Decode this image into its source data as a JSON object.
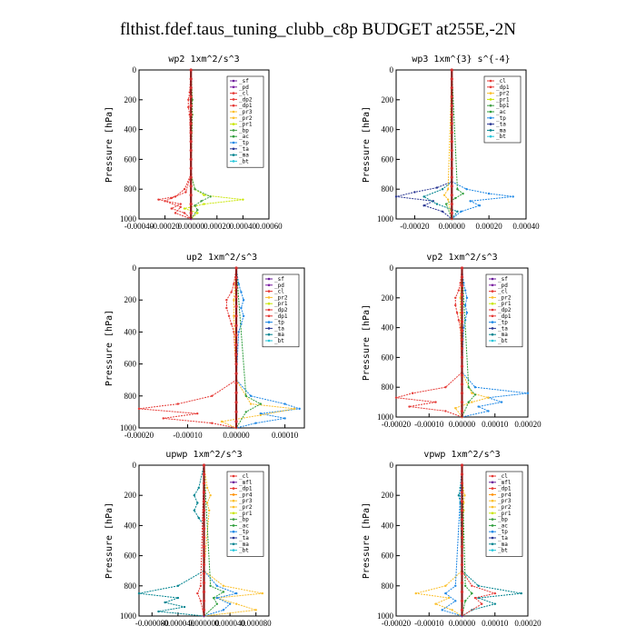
{
  "page": {
    "title": "flthist.fdef.taus_tuning_clubb_c8p  BUDGET at255E,-2N"
  },
  "colors": {
    "sf": "#6a1b9a",
    "pd": "#7b1fa2",
    "cl": "#e53935",
    "dp2": "#e53935",
    "dp1": "#e53935",
    "pr3": "#fbc02d",
    "pr2": "#fbc02d",
    "pr1": "#c8e600",
    "bp": "#43a047",
    "ac": "#2e9e3c",
    "tp": "#1e88e5",
    "ta": "#283593",
    "ma": "#00838f",
    "bt": "#26c6da",
    "mfl": "#6a1b9a",
    "pr4": "#ff8f00",
    "zero_line": "#8b1a1a"
  },
  "chart_data": [
    {
      "type": "line",
      "title": "wp2   1xm^2/s^3",
      "ylabel": "Pressure [hPa]",
      "xlim": [
        -0.0004,
        0.0006
      ],
      "ylim": [
        1000,
        0
      ],
      "xticks": [
        "-0.00040",
        "-0.00020",
        "0.00000",
        "0.00020",
        "0.00040",
        "0.00060"
      ],
      "yticks": [
        "0",
        "200",
        "400",
        "600",
        "800",
        "1000"
      ],
      "legend": [
        "_sf",
        "_pd",
        "_cl",
        "_dp2",
        "_dp1",
        "_pr3",
        "_pr2",
        "_pr1",
        "_bp",
        "_ac",
        "_tp",
        "_ta",
        "_ma",
        "_bt"
      ],
      "legend_keys": [
        "sf",
        "pd",
        "cl",
        "dp2",
        "dp1",
        "pr3",
        "pr2",
        "pr1",
        "bp",
        "ac",
        "tp",
        "ta",
        "ma",
        "bt"
      ],
      "legend_position": "top-right",
      "series": [
        {
          "key": "pr1",
          "p": [
            0,
            200,
            300,
            700,
            800,
            840,
            870,
            900,
            930,
            960,
            1000
          ],
          "x": [
            0,
            1e-05,
            1e-05,
            0,
            3e-05,
            0.0001,
            0.0004,
            0.0001,
            -5e-05,
            5e-05,
            0
          ]
        },
        {
          "key": "bp",
          "p": [
            0,
            200,
            300,
            700,
            800,
            850,
            880,
            910,
            940,
            1000
          ],
          "x": [
            0,
            1e-05,
            1e-05,
            0,
            3e-05,
            0.00015,
            8e-05,
            3e-05,
            5e-05,
            0
          ]
        },
        {
          "key": "dp1",
          "p": [
            0,
            150,
            200,
            250,
            300,
            700,
            800,
            850,
            870,
            900,
            930,
            960,
            1000
          ],
          "x": [
            0,
            -1e-05,
            -2e-05,
            -2e-05,
            -1e-05,
            0,
            -5e-05,
            -0.00012,
            -0.00025,
            -8e-05,
            -0.00015,
            -5e-05,
            0
          ]
        },
        {
          "key": "cl",
          "p": [
            0,
            700,
            820,
            860,
            880,
            920,
            960,
            1000
          ],
          "x": [
            0,
            0,
            -4e-05,
            -0.00015,
            -0.0002,
            -8e-05,
            -0.00012,
            0
          ]
        },
        {
          "key": "pd",
          "p": [
            0,
            1000
          ],
          "x": [
            0,
            0
          ]
        }
      ]
    },
    {
      "type": "line",
      "title": "wp3   1xm^{3} s^{-4}",
      "ylabel": "Pressure [hPa]",
      "xlim": [
        -0.0003,
        0.0004
      ],
      "ylim": [
        1000,
        0
      ],
      "xticks": [
        "-0.00020",
        "0.00000",
        "0.00020",
        "0.00040"
      ],
      "yticks": [
        "0",
        "200",
        "400",
        "600",
        "800",
        "1000"
      ],
      "legend": [
        "_cl",
        "_dp1",
        "_pr2",
        "_pr1",
        "_bp1",
        "_ac",
        "_tp",
        "_ta",
        "_ma",
        "_bt"
      ],
      "legend_keys": [
        "cl",
        "dp1",
        "pr2",
        "pr1",
        "bp",
        "ac",
        "tp",
        "ta",
        "ma",
        "bt"
      ],
      "legend_position": "top-right",
      "series": [
        {
          "key": "ta",
          "p": [
            0,
            750,
            790,
            820,
            850,
            880,
            910,
            950,
            1000
          ],
          "x": [
            0,
            0,
            -8e-05,
            -0.0002,
            -0.0003,
            -0.0001,
            -0.00015,
            -5e-05,
            0
          ]
        },
        {
          "key": "tp",
          "p": [
            0,
            750,
            800,
            830,
            850,
            880,
            910,
            950,
            1000
          ],
          "x": [
            0,
            0,
            8e-05,
            0.0002,
            0.00033,
            0.0001,
            0.00015,
            5e-05,
            0
          ]
        },
        {
          "key": "ma",
          "p": [
            0,
            750,
            800,
            850,
            900,
            950,
            1000
          ],
          "x": [
            0,
            0,
            -5e-05,
            -0.00015,
            -8e-05,
            3e-05,
            0
          ]
        },
        {
          "key": "ac",
          "p": [
            0,
            800,
            830,
            860,
            900,
            1000
          ],
          "x": [
            0,
            3e-05,
            6e-05,
            2e-05,
            -3e-05,
            0
          ]
        },
        {
          "key": "pr2",
          "p": [
            0,
            800,
            840,
            870,
            1000
          ],
          "x": [
            0,
            -2e-05,
            -4e-05,
            -2e-05,
            0
          ]
        },
        {
          "key": "cl",
          "p": [
            0,
            1000
          ],
          "x": [
            0,
            0
          ]
        }
      ]
    },
    {
      "type": "line",
      "title": "up2   1xm^2/s^3",
      "ylabel": "Pressure [hPa]",
      "xlim": [
        -0.0002,
        0.00014
      ],
      "ylim": [
        1000,
        0
      ],
      "xticks": [
        "-0.00020",
        "-0.00010",
        "0.00000",
        "0.00010"
      ],
      "yticks": [
        "0",
        "200",
        "400",
        "600",
        "800",
        "1000"
      ],
      "legend": [
        "_sf",
        "_pd",
        "_cl",
        "_pr2",
        "_pr1",
        "_dp2",
        "_dp1",
        "_tp",
        "_ta",
        "_ma",
        "_bt"
      ],
      "legend_keys": [
        "sf",
        "pd",
        "cl",
        "pr2",
        "pr1",
        "dp2",
        "dp1",
        "tp",
        "ta",
        "ma",
        "bt"
      ],
      "legend_position": "top-right",
      "series": [
        {
          "key": "dp1",
          "p": [
            0,
            100,
            150,
            200,
            250,
            300,
            350,
            400,
            700,
            800,
            850,
            880,
            910,
            940,
            970,
            1000
          ],
          "x": [
            0,
            -5e-06,
            -1e-05,
            -2e-05,
            -2e-05,
            -1.5e-05,
            -1e-05,
            -5e-06,
            0,
            -5e-05,
            -0.00012,
            -0.0002,
            -8e-05,
            -0.00015,
            -5e-05,
            0
          ]
        },
        {
          "key": "tp",
          "p": [
            0,
            100,
            150,
            200,
            250,
            300,
            350,
            400,
            700,
            800,
            850,
            880,
            910,
            940,
            970,
            1000
          ],
          "x": [
            0,
            5e-06,
            1e-05,
            1.5e-05,
            1e-05,
            1.5e-05,
            1e-05,
            5e-06,
            0,
            3e-05,
            0.0001,
            0.00013,
            5e-05,
            0.0001,
            4e-05,
            0
          ]
        },
        {
          "key": "pr2",
          "p": [
            0,
            200,
            300,
            700,
            850,
            880,
            920,
            960,
            1000
          ],
          "x": [
            0,
            -5e-06,
            -5e-06,
            0,
            3e-05,
            0.00012,
            5e-05,
            -3e-05,
            0
          ]
        },
        {
          "key": "ac",
          "p": [
            0,
            800,
            850,
            900,
            1000
          ],
          "x": [
            0,
            2e-05,
            5e-05,
            2e-05,
            0
          ]
        },
        {
          "key": "cl",
          "p": [
            0,
            1000
          ],
          "x": [
            0,
            0
          ]
        }
      ]
    },
    {
      "type": "line",
      "title": "vp2   1xm^2/s^3",
      "ylabel": "Pressure [hPa]",
      "xlim": [
        -0.0002,
        0.0002
      ],
      "ylim": [
        1000,
        0
      ],
      "xticks": [
        "-0.00020",
        "-0.00010",
        "0.00000",
        "0.00010",
        "0.00020"
      ],
      "yticks": [
        "0",
        "200",
        "400",
        "600",
        "800",
        "1000"
      ],
      "legend": [
        "_sf",
        "_pd",
        "_cl",
        "_pr2",
        "_pr1",
        "_dp2",
        "_dp1",
        "_tp",
        "_ta",
        "_ma",
        "_bt"
      ],
      "legend_keys": [
        "sf",
        "pd",
        "cl",
        "pr2",
        "pr1",
        "dp2",
        "dp1",
        "tp",
        "ta",
        "ma",
        "bt"
      ],
      "legend_position": "top-right",
      "series": [
        {
          "key": "dp1",
          "p": [
            0,
            100,
            150,
            200,
            250,
            300,
            350,
            400,
            700,
            800,
            840,
            870,
            900,
            930,
            960,
            1000
          ],
          "x": [
            0,
            -5e-06,
            -1e-05,
            -2e-05,
            -2e-05,
            -1.5e-05,
            -1e-05,
            -5e-06,
            0,
            -5e-05,
            -0.00015,
            -0.0002,
            -8e-05,
            -0.00016,
            -5e-05,
            0
          ]
        },
        {
          "key": "tp",
          "p": [
            0,
            100,
            150,
            200,
            250,
            300,
            350,
            400,
            700,
            800,
            840,
            870,
            900,
            930,
            960,
            1000
          ],
          "x": [
            0,
            5e-06,
            1e-05,
            1.5e-05,
            1e-05,
            1.5e-05,
            1e-05,
            5e-06,
            0,
            4e-05,
            0.0002,
            8e-05,
            0.00012,
            5e-05,
            8e-05,
            0
          ]
        },
        {
          "key": "pr2",
          "p": [
            0,
            200,
            300,
            700,
            840,
            870,
            900,
            940,
            1000
          ],
          "x": [
            0,
            -5e-06,
            -5e-06,
            0,
            3e-05,
            8e-05,
            3e-05,
            -2e-05,
            0
          ]
        },
        {
          "key": "ac",
          "p": [
            0,
            800,
            850,
            900,
            1000
          ],
          "x": [
            0,
            2e-05,
            4e-05,
            2e-05,
            0
          ]
        },
        {
          "key": "cl",
          "p": [
            0,
            1000
          ],
          "x": [
            0,
            0
          ]
        }
      ]
    },
    {
      "type": "line",
      "title": "upwp   1xm^2/s^3",
      "ylabel": "Pressure [hPa]",
      "xlim": [
        -0.0001,
        0.0001
      ],
      "ylim": [
        1000,
        0
      ],
      "xticks": [
        "-0.000080",
        "-0.000040",
        "0.000000",
        "0.000040",
        "0.000080"
      ],
      "yticks": [
        "0",
        "200",
        "400",
        "600",
        "800",
        "1000"
      ],
      "legend": [
        "_cl",
        "_mfl",
        "_dp1",
        "_pr4",
        "_pr3",
        "_pr2",
        "_pr1",
        "_bp",
        "_ac",
        "_tp",
        "_ta",
        "_ma",
        "_bt"
      ],
      "legend_keys": [
        "cl",
        "mfl",
        "dp1",
        "pr4",
        "pr3",
        "pr2",
        "pr1",
        "bp",
        "ac",
        "tp",
        "ta",
        "ma",
        "bt"
      ],
      "legend_position": "top-right",
      "series": [
        {
          "key": "ma",
          "p": [
            0,
            150,
            200,
            250,
            300,
            350,
            400,
            700,
            800,
            850,
            880,
            910,
            940,
            970,
            1000
          ],
          "x": [
            0,
            -8e-06,
            -1.5e-05,
            -1e-05,
            -1.5e-05,
            -8e-06,
            0,
            0,
            -4e-05,
            -0.0001,
            -4e-05,
            -6e-05,
            -3e-05,
            -7e-05,
            0
          ]
        },
        {
          "key": "pr2",
          "p": [
            0,
            150,
            200,
            250,
            300,
            700,
            800,
            850,
            880,
            920,
            960,
            1000
          ],
          "x": [
            0,
            5e-06,
            1e-05,
            5e-06,
            8e-06,
            0,
            3e-05,
            9e-05,
            2e-05,
            5e-05,
            8e-05,
            0
          ]
        },
        {
          "key": "tp",
          "p": [
            0,
            700,
            800,
            850,
            880,
            920,
            960,
            1000
          ],
          "x": [
            0,
            0,
            2e-05,
            5e-05,
            2e-05,
            4e-05,
            3e-05,
            0
          ]
        },
        {
          "key": "ac",
          "p": [
            0,
            800,
            840,
            880,
            920,
            1000
          ],
          "x": [
            0,
            1e-05,
            3e-05,
            1.5e-05,
            2e-05,
            0
          ]
        },
        {
          "key": "cl",
          "p": [
            0,
            800,
            850,
            900,
            1000
          ],
          "x": [
            0,
            -5e-06,
            -1e-05,
            -5e-06,
            0
          ]
        },
        {
          "key": "mfl",
          "p": [
            0,
            1000
          ],
          "x": [
            0,
            0
          ]
        }
      ]
    },
    {
      "type": "line",
      "title": "vpwp   1xm^2/s^3",
      "ylabel": "Pressure [hPa]",
      "xlim": [
        -0.0002,
        0.0002
      ],
      "ylim": [
        1000,
        0
      ],
      "xticks": [
        "-0.00020",
        "-0.00010",
        "0.00000",
        "0.00010",
        "0.00020"
      ],
      "yticks": [
        "0",
        "200",
        "400",
        "600",
        "800",
        "1000"
      ],
      "legend": [
        "_cl",
        "_mfl",
        "_dp1",
        "_pr4",
        "_pr3",
        "_pr2",
        "_pr1",
        "_bp",
        "_ac",
        "_tp",
        "_ta",
        "_ma",
        "_bt"
      ],
      "legend_keys": [
        "cl",
        "mfl",
        "dp1",
        "pr4",
        "pr3",
        "pr2",
        "pr1",
        "bp",
        "ac",
        "tp",
        "ta",
        "ma",
        "bt"
      ],
      "legend_position": "top-right",
      "series": [
        {
          "key": "ma",
          "p": [
            0,
            150,
            200,
            250,
            700,
            800,
            850,
            880,
            920,
            960,
            1000
          ],
          "x": [
            0,
            -5e-06,
            -1e-05,
            -5e-06,
            0,
            5e-05,
            0.00018,
            5e-05,
            0.0001,
            3e-05,
            0
          ]
        },
        {
          "key": "pr2",
          "p": [
            0,
            150,
            200,
            250,
            300,
            700,
            800,
            850,
            880,
            920,
            960,
            1000
          ],
          "x": [
            0,
            3e-06,
            8e-06,
            5e-06,
            5e-06,
            0,
            -5e-05,
            -0.00014,
            -4e-05,
            -8e-05,
            -3e-05,
            0
          ]
        },
        {
          "key": "dp1",
          "p": [
            0,
            700,
            800,
            850,
            880,
            920,
            1000
          ],
          "x": [
            0,
            0,
            3e-05,
            0.0001,
            4e-05,
            6e-05,
            0
          ]
        },
        {
          "key": "tp",
          "p": [
            0,
            800,
            850,
            900,
            960,
            1000
          ],
          "x": [
            0,
            -2e-05,
            -5e-05,
            -2e-05,
            -6e-05,
            0
          ]
        },
        {
          "key": "ac",
          "p": [
            0,
            800,
            850,
            900,
            1000
          ],
          "x": [
            0,
            1e-05,
            3e-05,
            1e-05,
            0
          ]
        },
        {
          "key": "mfl",
          "p": [
            0,
            1000
          ],
          "x": [
            0,
            0
          ]
        }
      ]
    }
  ]
}
